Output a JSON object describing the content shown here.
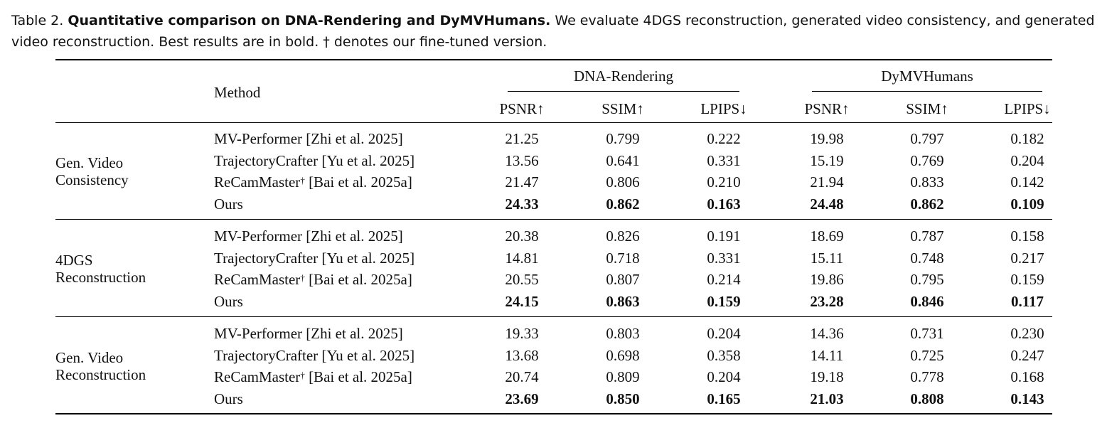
{
  "caption": {
    "label": "Table 2.",
    "title": "Quantitative comparison on DNA-Rendering and DyMVHumans.",
    "text": "We evaluate 4DGS reconstruction, generated video consistency, and generated video reconstruction. Best results are in bold. † denotes our fine-tuned version."
  },
  "header": {
    "method": "Method",
    "dataset_1": "DNA-Rendering",
    "dataset_2": "DyMVHumans",
    "metrics": [
      "PSNR↑",
      "SSIM↑",
      "LPIPS↓",
      "PSNR↑",
      "SSIM↑",
      "LPIPS↓"
    ]
  },
  "groups": [
    {
      "label_line1": "Gen. Video",
      "label_line2": "Consistency",
      "rows": [
        {
          "method": "MV-Performer",
          "suffix": "",
          "cite": "[Zhi et al. 2025]",
          "values": [
            "21.25",
            "0.799",
            "0.222",
            "19.98",
            "0.797",
            "0.182"
          ],
          "bold": false
        },
        {
          "method": "TrajectoryCrafter",
          "suffix": "",
          "cite": "[Yu et al. 2025]",
          "values": [
            "13.56",
            "0.641",
            "0.331",
            "15.19",
            "0.769",
            "0.204"
          ],
          "bold": false
        },
        {
          "method": "ReCamMaster",
          "suffix": "†",
          "cite": "[Bai et al. 2025a]",
          "values": [
            "21.47",
            "0.806",
            "0.210",
            "21.94",
            "0.833",
            "0.142"
          ],
          "bold": false
        },
        {
          "method": "Ours",
          "suffix": "",
          "cite": "",
          "values": [
            "24.33",
            "0.862",
            "0.163",
            "24.48",
            "0.862",
            "0.109"
          ],
          "bold": true
        }
      ]
    },
    {
      "label_line1": "4DGS",
      "label_line2": "Reconstruction",
      "rows": [
        {
          "method": "MV-Performer",
          "suffix": "",
          "cite": "[Zhi et al. 2025]",
          "values": [
            "20.38",
            "0.826",
            "0.191",
            "18.69",
            "0.787",
            "0.158"
          ],
          "bold": false
        },
        {
          "method": "TrajectoryCrafter",
          "suffix": "",
          "cite": "[Yu et al. 2025]",
          "values": [
            "14.81",
            "0.718",
            "0.331",
            "15.11",
            "0.748",
            "0.217"
          ],
          "bold": false
        },
        {
          "method": "ReCamMaster",
          "suffix": "†",
          "cite": "[Bai et al. 2025a]",
          "values": [
            "20.55",
            "0.807",
            "0.214",
            "19.86",
            "0.795",
            "0.159"
          ],
          "bold": false
        },
        {
          "method": "Ours",
          "suffix": "",
          "cite": "",
          "values": [
            "24.15",
            "0.863",
            "0.159",
            "23.28",
            "0.846",
            "0.117"
          ],
          "bold": true
        }
      ]
    },
    {
      "label_line1": "Gen. Video",
      "label_line2": "Reconstruction",
      "rows": [
        {
          "method": "MV-Performer",
          "suffix": "",
          "cite": "[Zhi et al. 2025]",
          "values": [
            "19.33",
            "0.803",
            "0.204",
            "14.36",
            "0.731",
            "0.230"
          ],
          "bold": false
        },
        {
          "method": "TrajectoryCrafter",
          "suffix": "",
          "cite": "[Yu et al. 2025]",
          "values": [
            "13.68",
            "0.698",
            "0.358",
            "14.11",
            "0.725",
            "0.247"
          ],
          "bold": false
        },
        {
          "method": "ReCamMaster",
          "suffix": "†",
          "cite": "[Bai et al. 2025a]",
          "values": [
            "20.74",
            "0.809",
            "0.204",
            "19.18",
            "0.778",
            "0.168"
          ],
          "bold": false
        },
        {
          "method": "Ours",
          "suffix": "",
          "cite": "",
          "values": [
            "23.69",
            "0.850",
            "0.165",
            "21.03",
            "0.808",
            "0.143"
          ],
          "bold": true
        }
      ]
    }
  ]
}
